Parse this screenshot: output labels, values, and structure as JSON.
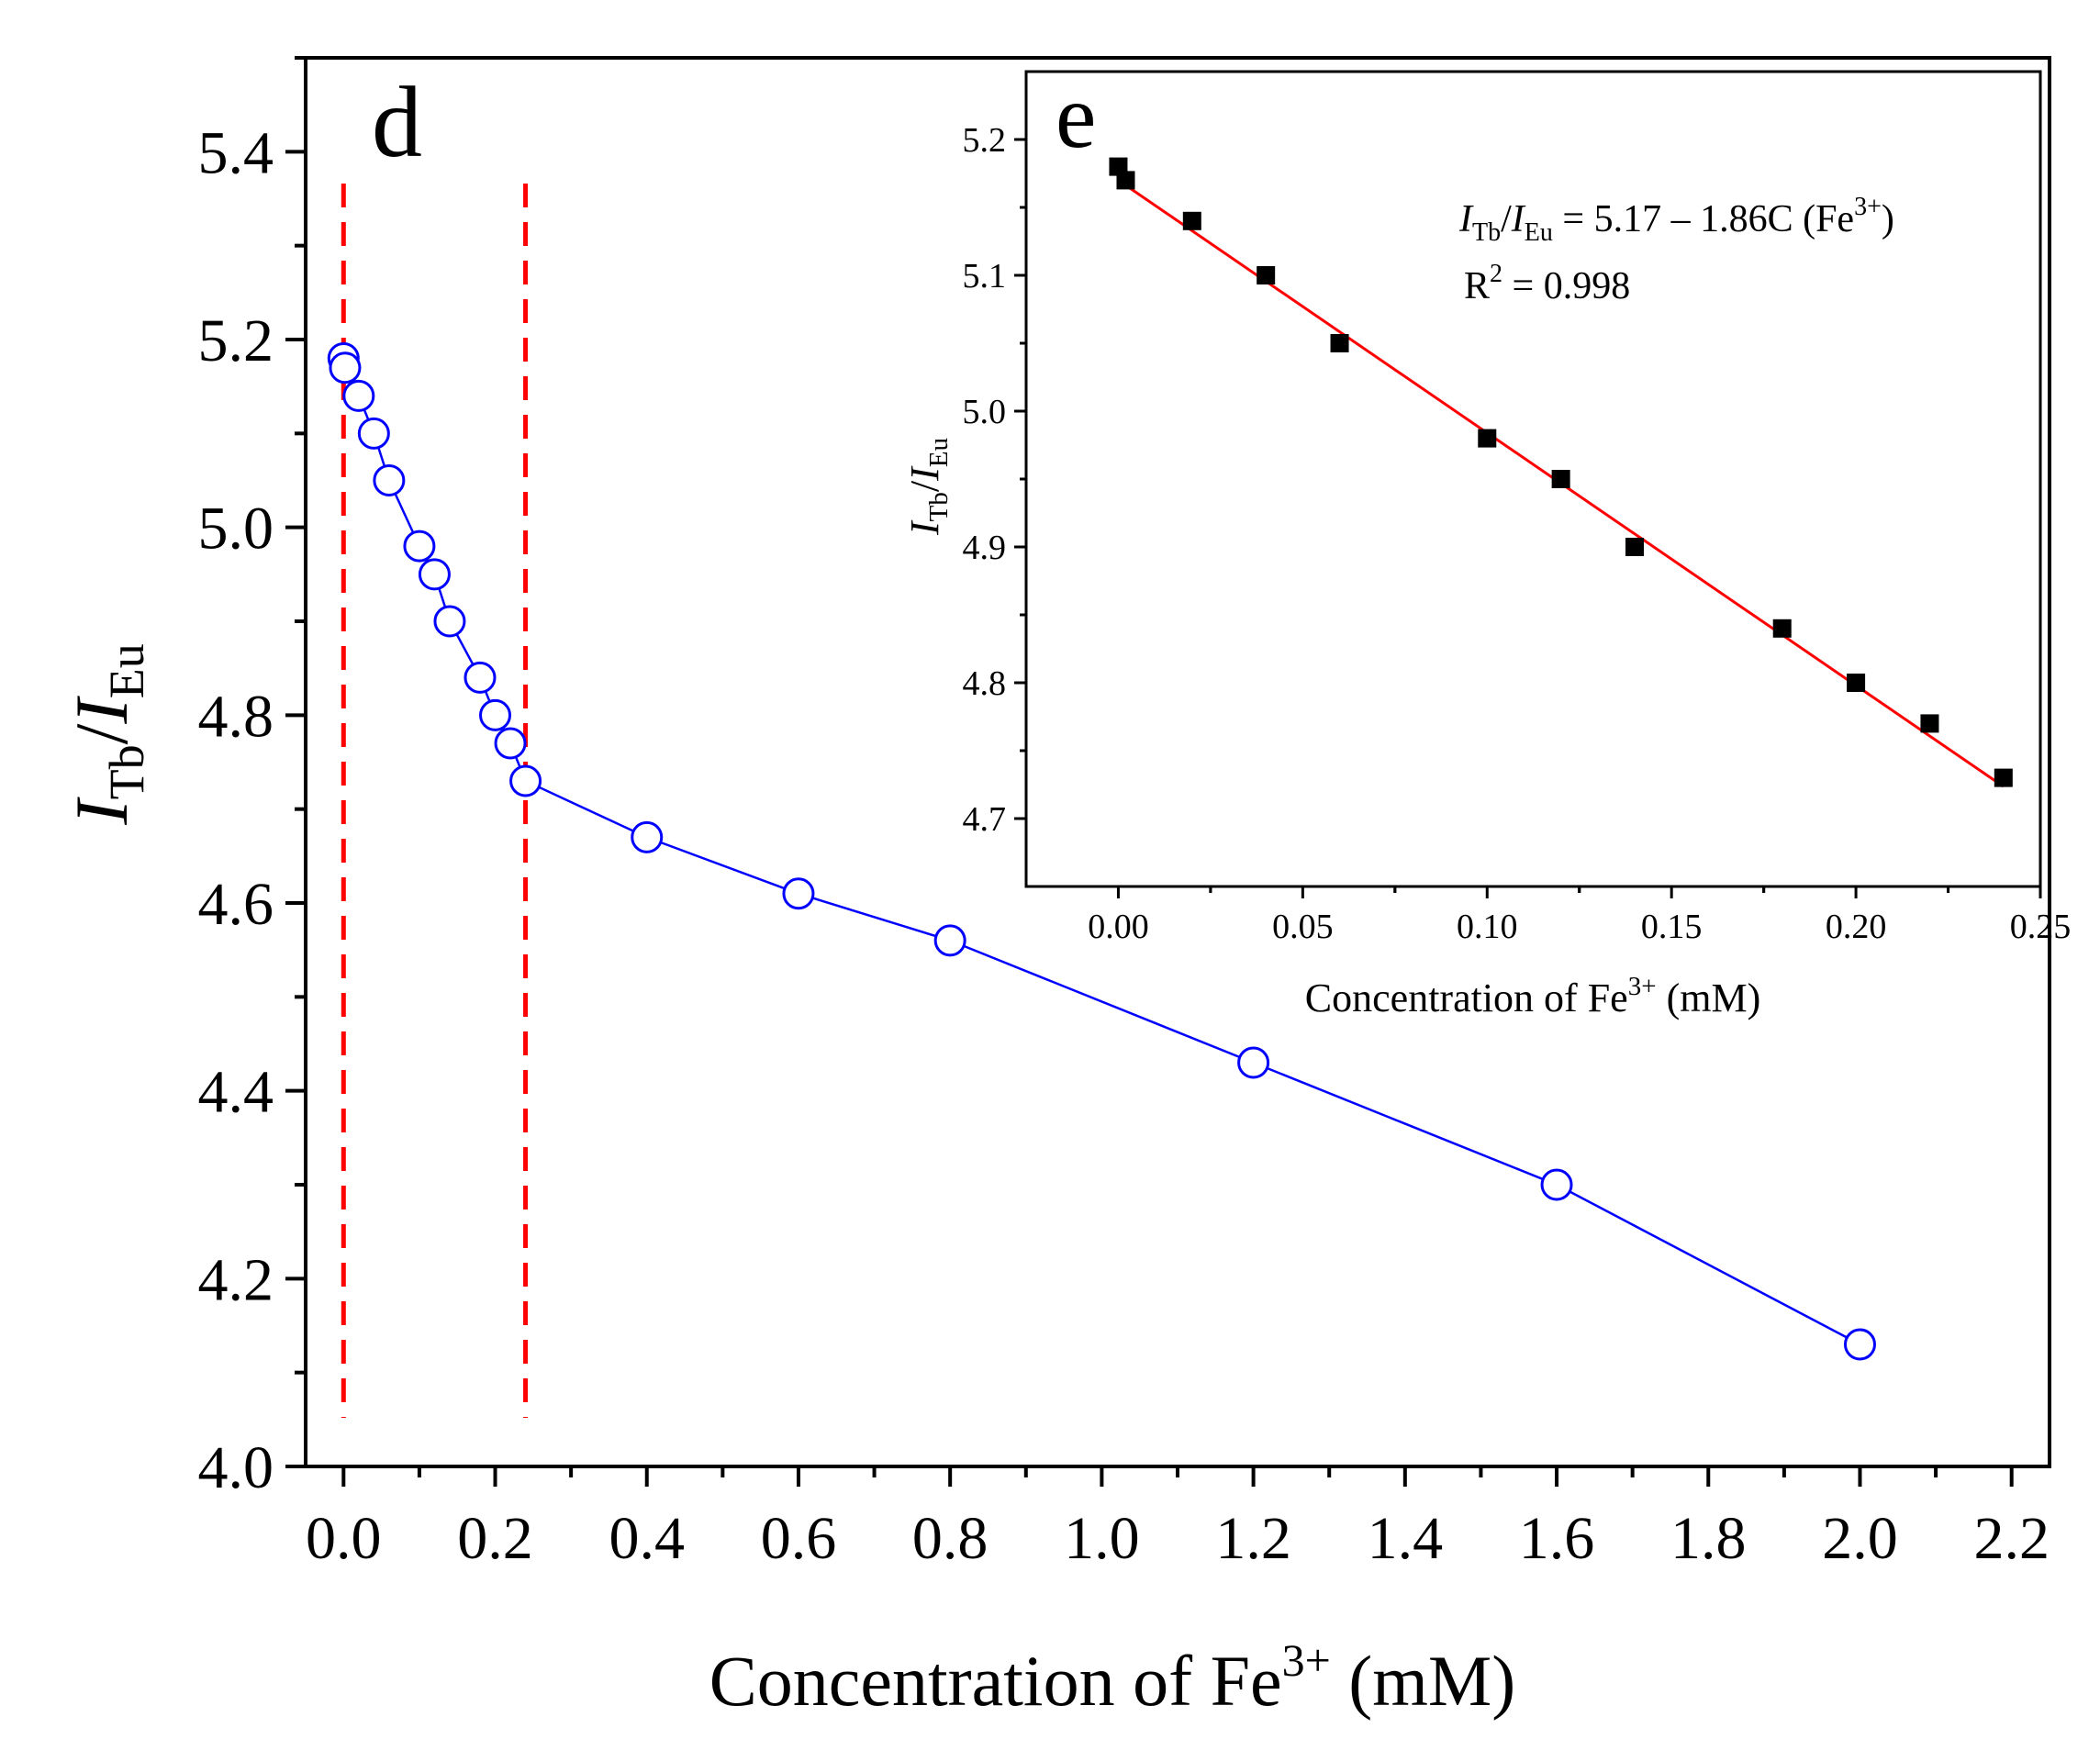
{
  "chart_data": [
    {
      "panel_label": "d",
      "type": "line",
      "marker": "open-circle",
      "color": "#0000ff",
      "x": [
        0.0,
        0.002,
        0.02,
        0.04,
        0.06,
        0.1,
        0.12,
        0.14,
        0.18,
        0.2,
        0.22,
        0.24,
        0.4,
        0.6,
        0.8,
        1.2,
        1.6,
        2.0
      ],
      "y": [
        5.18,
        5.17,
        5.14,
        5.1,
        5.05,
        4.98,
        4.95,
        4.9,
        4.84,
        4.8,
        4.77,
        4.73,
        4.67,
        4.61,
        4.56,
        4.43,
        4.3,
        4.13
      ],
      "xlim": [
        -0.05,
        2.25
      ],
      "ylim": [
        4.0,
        5.5
      ],
      "xticks": [
        "0.0",
        "0.2",
        "0.4",
        "0.6",
        "0.8",
        "1.0",
        "1.2",
        "1.4",
        "1.6",
        "1.8",
        "2.0",
        "2.2"
      ],
      "yticks": [
        "4.0",
        "4.2",
        "4.4",
        "4.6",
        "4.8",
        "5.0",
        "5.2",
        "5.4"
      ],
      "xlabel_prefix": "Concentration of Fe",
      "xlabel_sup": "3+",
      "xlabel_suffix": " (mM)",
      "ylabel_I1": "I",
      "ylabel_sub1": "Tb",
      "ylabel_slash": "/",
      "ylabel_I2": "I",
      "ylabel_sub2": "Eu",
      "reference_lines": {
        "x": [
          0.0,
          0.24
        ],
        "color": "#ff0000",
        "style": "dashed"
      }
    },
    {
      "panel_label": "e",
      "type": "scatter",
      "marker": "filled-square",
      "color": "#000000",
      "x": [
        0.0,
        0.002,
        0.02,
        0.04,
        0.06,
        0.1,
        0.12,
        0.14,
        0.18,
        0.2,
        0.22,
        0.24
      ],
      "y": [
        5.18,
        5.17,
        5.14,
        5.1,
        5.05,
        4.98,
        4.95,
        4.9,
        4.84,
        4.8,
        4.77,
        4.73
      ],
      "fit": {
        "intercept": 5.17,
        "slope": -1.86,
        "x_range": [
          0.0,
          0.24
        ],
        "color": "#ff0000"
      },
      "xlim": [
        -0.025,
        0.25
      ],
      "ylim": [
        4.65,
        5.25
      ],
      "xticks": [
        "0.00",
        "0.05",
        "0.10",
        "0.15",
        "0.20",
        "0.25"
      ],
      "yticks": [
        "4.7",
        "4.8",
        "4.9",
        "5.0",
        "5.1",
        "5.2"
      ],
      "xlabel_prefix": "Concentration of Fe",
      "xlabel_sup": "3+",
      "xlabel_suffix": " (mM)",
      "ylabel_I1": "I",
      "ylabel_sub1": "Tb",
      "ylabel_slash": "/",
      "ylabel_I2": "I",
      "ylabel_sub2": "Eu",
      "equation": {
        "I1": "I",
        "sub1": "Tb",
        "slash": "/",
        "I2": "I",
        "sub2": "Eu",
        "rhs_prefix": " = 5.17 – 1.86C (Fe",
        "rhs_sup": "3+",
        "rhs_suffix": ")"
      },
      "r2": {
        "prefix": "R",
        "sup": "2",
        "suffix": " = 0.998"
      }
    }
  ]
}
